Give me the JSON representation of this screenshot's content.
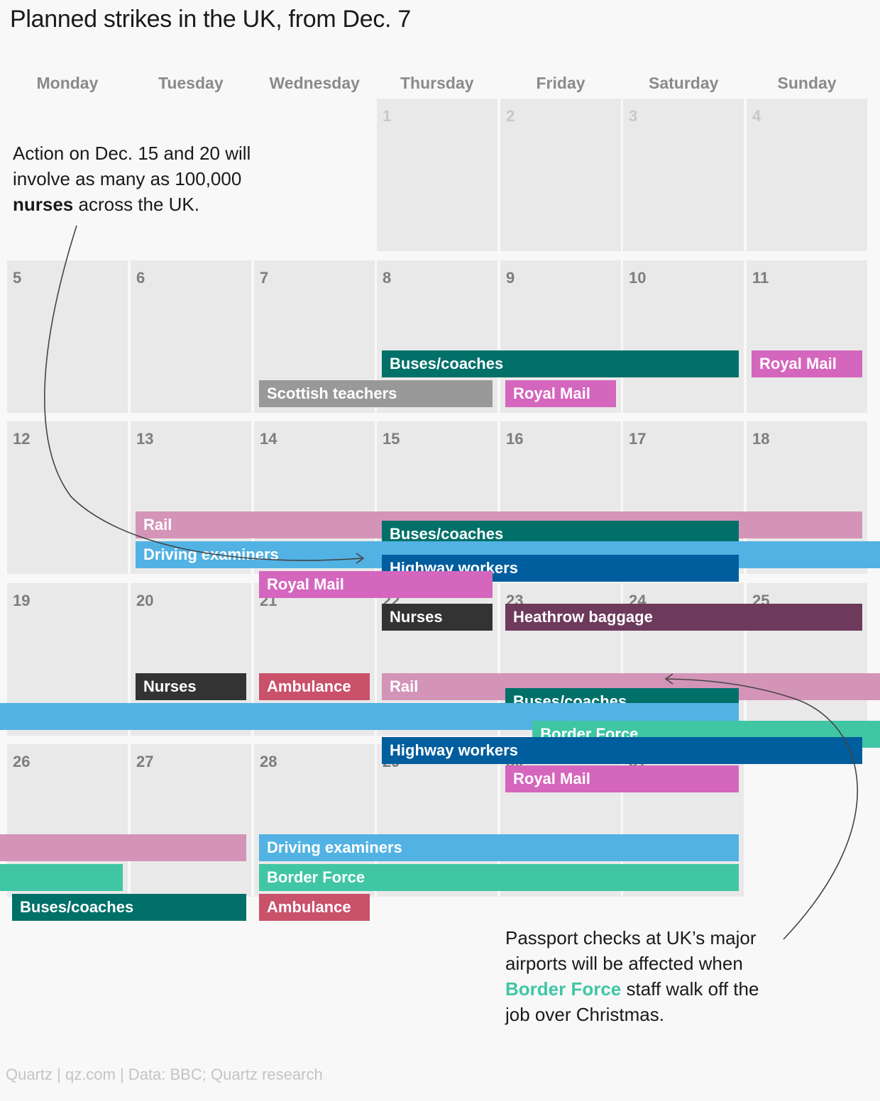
{
  "title": "Planned strikes in the UK, from Dec. 7",
  "weekdays": [
    "Monday",
    "Tuesday",
    "Wednesday",
    "Thursday",
    "Friday",
    "Saturday",
    "Sunday"
  ],
  "chart_data": {
    "type": "calendar",
    "month": "December",
    "first_weekday_index": 3,
    "days": 31,
    "highlight_from_day": 5,
    "colors": {
      "Buses/coaches": "#007069",
      "Royal Mail": "#d466bd",
      "Scottish teachers": "#999999",
      "Rail": "#d494b8",
      "Driving examiners": "#52b2e4",
      "Highway workers": "#005d9e",
      "Nurses": "#333333",
      "Heathrow baggage": "#6d3a5c",
      "Ambulance": "#c9516a",
      "Border Force": "#40c6a4"
    },
    "strikes": [
      {
        "label": "Buses/coaches",
        "start": 8,
        "end": 10,
        "lane": 0,
        "show_label": true
      },
      {
        "label": "Royal Mail",
        "start": 11,
        "end": 11,
        "lane": 0,
        "show_label": true
      },
      {
        "label": "Scottish teachers",
        "start": 7,
        "end": 8,
        "lane": 1,
        "show_label": true
      },
      {
        "label": "Royal Mail",
        "start": 9,
        "end": 9,
        "lane": 1,
        "show_label": true
      },
      {
        "label": "Rail",
        "start": 13,
        "end": 18,
        "lane": 0,
        "show_label": true
      },
      {
        "label": "Buses/coaches",
        "start": 15,
        "end": 17,
        "lane": 0.3,
        "show_label": true
      },
      {
        "label": "Driving examiners",
        "start": 13,
        "end": 19,
        "lane": 1,
        "show_label": true
      },
      {
        "label": "Highway workers",
        "start": 15,
        "end": 17,
        "lane": 1.45,
        "show_label": true
      },
      {
        "label": "Royal Mail",
        "start": 14,
        "end": 15,
        "lane": 2,
        "show_label": true
      },
      {
        "label": "Nurses",
        "start": 15,
        "end": 15,
        "lane": 3.1,
        "show_label": true
      },
      {
        "label": "Heathrow baggage",
        "start": 16,
        "end": 18,
        "lane": 3.1,
        "show_label": true
      },
      {
        "label": "Nurses",
        "start": 20,
        "end": 20,
        "lane": 0,
        "show_label": true
      },
      {
        "label": "Ambulance",
        "start": 21,
        "end": 21,
        "lane": 0,
        "show_label": true
      },
      {
        "label": "Rail",
        "start": 22,
        "end": 25,
        "lane": 0,
        "show_label": true
      },
      {
        "label": "Buses/coaches",
        "start": 23,
        "end": 24,
        "lane": 0.5,
        "show_label": true
      },
      {
        "label": "Driving examiners",
        "start": 19,
        "end": 24,
        "lane": 1,
        "show_label": false,
        "from_left_edge": true
      },
      {
        "label": "Border Force",
        "start": 23,
        "end": 25,
        "lane": 1.6,
        "show_label": true,
        "offset_cols": 0.22
      },
      {
        "label": "Highway workers",
        "start": 22,
        "end": 25,
        "lane": 2.15,
        "show_label": true,
        "end_inset": true
      },
      {
        "label": "Royal Mail",
        "start": 23,
        "end": 24,
        "lane": 3.1,
        "show_label": true
      },
      {
        "label": "Rail",
        "start": 26,
        "end": 27,
        "lane": 0,
        "show_label": false,
        "from_left_edge": true
      },
      {
        "label": "Driving examiners",
        "start": 28,
        "end": 31,
        "lane": 0,
        "show_label": true
      },
      {
        "label": "Border Force",
        "start": 26,
        "end": 26,
        "lane": 1,
        "show_label": false,
        "from_left_edge": true
      },
      {
        "label": "Border Force",
        "start": 28,
        "end": 31,
        "lane": 1,
        "show_label": true
      },
      {
        "label": "Buses/coaches",
        "start": 26,
        "end": 27,
        "lane": 2,
        "show_label": true
      },
      {
        "label": "Ambulance",
        "start": 28,
        "end": 28,
        "lane": 2,
        "show_label": true
      }
    ],
    "annotations": [
      {
        "id": "nurses",
        "text_before": "Action on Dec. 15 and 20 will involve as many as 100,000 ",
        "bold": "nurses",
        "text_after": " across the UK."
      },
      {
        "id": "border",
        "line1": "Passport checks at UK’s major",
        "line2": "airports will be affected when",
        "highlight": "Border Force",
        "line3_after": " staff walk off the",
        "line4": "job over Christmas."
      }
    ]
  },
  "source": "Quartz | qz.com | Data: BBC; Quartz research"
}
